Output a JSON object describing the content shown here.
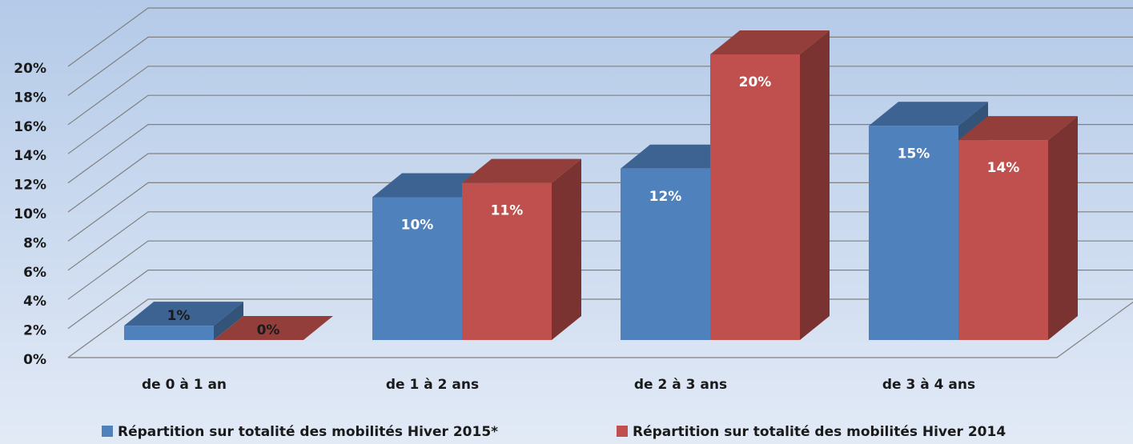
{
  "chart_data": {
    "type": "bar3d",
    "categories": [
      "de 0 à 1 an",
      "de 1 à 2 ans",
      "de 2 à 3 ans",
      "de 3 à 4 ans"
    ],
    "series": [
      {
        "name": "Répartition sur totalité des mobilités Hiver 2015*",
        "color": "#4f81bd",
        "values": [
          1,
          10,
          12,
          15
        ],
        "value_labels": [
          "1%",
          "10%",
          "12%",
          "15%"
        ]
      },
      {
        "name": "Répartition sur totalité des mobilités Hiver 2014",
        "color": "#c0504d",
        "values": [
          0,
          11,
          20,
          14
        ],
        "value_labels": [
          "0%",
          "11%",
          "20%",
          "14%"
        ]
      }
    ],
    "ylim": [
      0,
      20
    ],
    "yticks": [
      {
        "value": 0,
        "label": "0%"
      },
      {
        "value": 2,
        "label": "2%"
      },
      {
        "value": 4,
        "label": "4%"
      },
      {
        "value": 6,
        "label": "6%"
      },
      {
        "value": 8,
        "label": "8%"
      },
      {
        "value": 10,
        "label": "10%"
      },
      {
        "value": 12,
        "label": "12%"
      },
      {
        "value": 14,
        "label": "14%"
      },
      {
        "value": 16,
        "label": "16%"
      },
      {
        "value": 18,
        "label": "18%"
      },
      {
        "value": 20,
        "label": "20%"
      }
    ],
    "grid": true,
    "legend": "bottom"
  }
}
